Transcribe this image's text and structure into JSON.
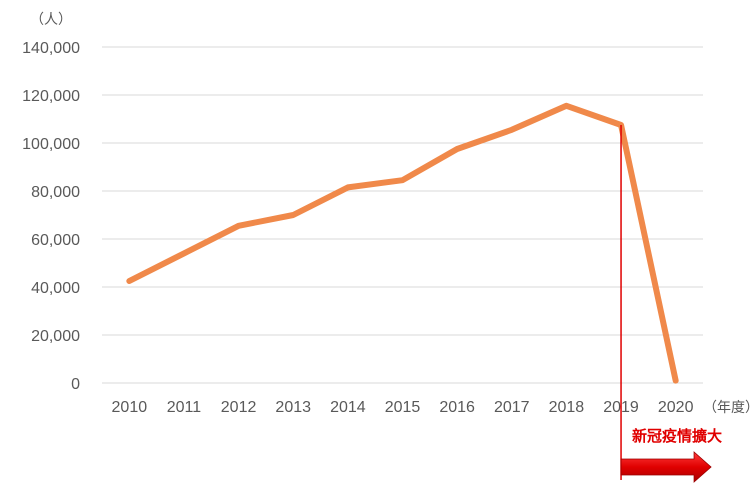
{
  "chart_data": {
    "type": "line",
    "y_unit_label": "（人）",
    "x_unit_label": "（年度）",
    "categories": [
      "2010",
      "2011",
      "2012",
      "2013",
      "2014",
      "2015",
      "2016",
      "2017",
      "2018",
      "2019",
      "2020"
    ],
    "series": [
      {
        "values": [
          42500,
          54000,
          65500,
          70000,
          81500,
          84500,
          97500,
          105500,
          115500,
          107500,
          1000
        ],
        "color": "#f0894a"
      }
    ],
    "ylim": [
      0,
      140000
    ],
    "yticks": [
      "0",
      "20,000",
      "40,000",
      "60,000",
      "80,000",
      "100,000",
      "120,000",
      "140,000"
    ],
    "grid": true,
    "annotation": {
      "text": "新冠疫情擴大",
      "at_category": "2019",
      "color": "#e00000"
    }
  }
}
